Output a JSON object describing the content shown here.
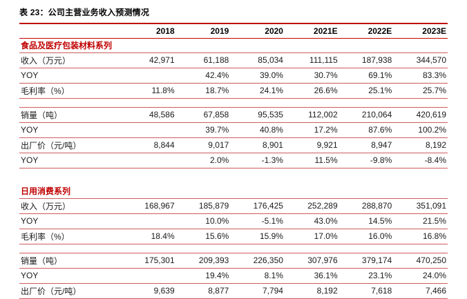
{
  "colors": {
    "accent_red": "#c00000",
    "thin_line_red": "#cd5b5b",
    "background": "#ffffff"
  },
  "chart_data": {
    "type": "table",
    "title": "表 23：公司主营业务收入预测情况",
    "columns": [
      "2018",
      "2019",
      "2020",
      "2021E",
      "2022E",
      "2023E"
    ],
    "sections": [
      {
        "header": "食品及医疗包装材料系列",
        "groups": [
          {
            "rows": [
              {
                "label": "收入（万元）",
                "values": [
                  "42,971",
                  "61,188",
                  "85,034",
                  "111,115",
                  "187,938",
                  "344,570"
                ]
              },
              {
                "label": "YOY",
                "values": [
                  "",
                  "42.4%",
                  "39.0%",
                  "30.7%",
                  "69.1%",
                  "83.3%"
                ]
              },
              {
                "label": "毛利率（%）",
                "values": [
                  "11.8%",
                  "18.7%",
                  "24.1%",
                  "26.6%",
                  "25.1%",
                  "25.7%"
                ]
              }
            ]
          },
          {
            "rows": [
              {
                "label": "销量（吨）",
                "values": [
                  "48,586",
                  "67,858",
                  "95,535",
                  "112,002",
                  "210,064",
                  "420,619"
                ]
              },
              {
                "label": "YOY",
                "values": [
                  "",
                  "39.7%",
                  "40.8%",
                  "17.2%",
                  "87.6%",
                  "100.2%"
                ]
              },
              {
                "label": "出厂价（元/吨）",
                "values": [
                  "8,844",
                  "9,017",
                  "8,901",
                  "9,921",
                  "8,947",
                  "8,192"
                ]
              },
              {
                "label": "YOY",
                "values": [
                  "",
                  "2.0%",
                  "-1.3%",
                  "11.5%",
                  "-9.8%",
                  "-8.4%"
                ]
              }
            ]
          }
        ]
      },
      {
        "header": "日用消费系列",
        "groups": [
          {
            "rows": [
              {
                "label": "收入（万元）",
                "values": [
                  "168,967",
                  "185,879",
                  "176,425",
                  "252,289",
                  "288,870",
                  "351,091"
                ]
              },
              {
                "label": "YOY",
                "values": [
                  "",
                  "10.0%",
                  "-5.1%",
                  "43.0%",
                  "14.5%",
                  "21.5%"
                ]
              },
              {
                "label": "毛利率（%）",
                "values": [
                  "18.4%",
                  "15.6%",
                  "15.9%",
                  "17.0%",
                  "16.0%",
                  "16.8%"
                ]
              }
            ]
          },
          {
            "rows": [
              {
                "label": "销量（吨）",
                "values": [
                  "175,301",
                  "209,393",
                  "226,350",
                  "307,976",
                  "379,174",
                  "470,250"
                ]
              },
              {
                "label": "YOY",
                "values": [
                  "",
                  "19.4%",
                  "8.1%",
                  "36.1%",
                  "23.1%",
                  "24.0%"
                ]
              },
              {
                "label": "出厂价（元/吨）",
                "values": [
                  "9,639",
                  "8,877",
                  "7,794",
                  "8,192",
                  "7,618",
                  "7,466"
                ]
              }
            ]
          }
        ]
      }
    ]
  }
}
